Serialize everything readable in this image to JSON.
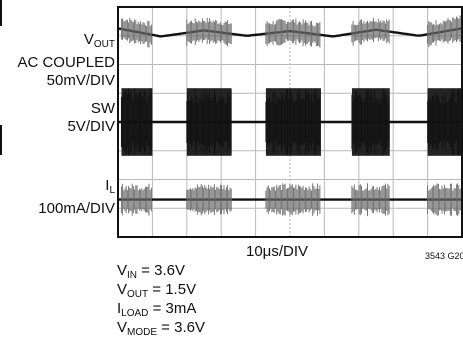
{
  "chart_data": {
    "type": "line",
    "title": "",
    "traces": [
      {
        "name_main": "V",
        "name_sub": "OUT",
        "lines": [
          "AC COUPLED",
          "50mV/DIV"
        ],
        "level": 0.34,
        "ripple": [
          0.0,
          0.6,
          0.15,
          0.55,
          0.2,
          0.6,
          0.1,
          0.55,
          0.0
        ],
        "noise_amp": 0.18,
        "burst_style": "hairline"
      },
      {
        "name_main": "SW",
        "name_sub": "",
        "lines": [
          "5V/DIV"
        ],
        "level": 0.5,
        "ripple": [],
        "noise_amp": 0.42,
        "burst_style": "solid"
      },
      {
        "name_main": "I",
        "name_sub": "L",
        "lines": [
          "100mA/DIV"
        ],
        "level": 0.5,
        "ripple": [],
        "noise_amp": 0.22,
        "burst_style": "hairline"
      }
    ],
    "bursts_div": [
      [
        0.1,
        1.0
      ],
      [
        2.0,
        3.3
      ],
      [
        4.3,
        5.9
      ],
      [
        6.8,
        7.9
      ],
      [
        9.0,
        10.0
      ]
    ],
    "x_divisions": 10,
    "y_divisions": 8,
    "timebase": "10μs/DIV",
    "grid": true,
    "colors": {
      "grid": "#b9b9b9",
      "frame": "#111111",
      "trace": "#111111",
      "burst": "#6a6a6a"
    }
  },
  "conditions": [
    {
      "main": "V",
      "sub": "IN",
      "rest": " = 3.6V"
    },
    {
      "main": "V",
      "sub": "OUT",
      "rest": " = 1.5V"
    },
    {
      "main": "I",
      "sub": "LOAD",
      "rest": " = 3mA"
    },
    {
      "main": "V",
      "sub": "MODE",
      "rest": " = 3.6V"
    }
  ],
  "figure_code": "3543 G20"
}
